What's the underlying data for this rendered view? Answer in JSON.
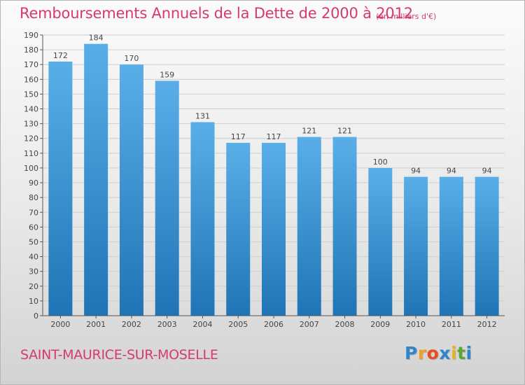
{
  "chart_data": {
    "type": "bar",
    "title": "Remboursements Annuels de la Dette de 2000 à 2012",
    "subtitle": "(en milliers d'€)",
    "categories": [
      "2000",
      "2001",
      "2002",
      "2003",
      "2004",
      "2005",
      "2006",
      "2007",
      "2008",
      "2009",
      "2010",
      "2011",
      "2012"
    ],
    "values": [
      172,
      184,
      170,
      159,
      131,
      117,
      117,
      121,
      121,
      100,
      94,
      94,
      94
    ],
    "ylim": [
      0,
      190
    ],
    "ytick_step": 10,
    "xlabel": "",
    "ylabel": "",
    "grid": true,
    "bar_color_top": "#5aaee8",
    "bar_color_bottom": "#1f74b5"
  },
  "footer": {
    "city": "SAINT-MAURICE-SUR-MOSELLE",
    "logo_letters": [
      "P",
      "r",
      "o",
      "x",
      "i",
      "t",
      "i"
    ],
    "logo_colors": [
      "#2e86c8",
      "#f0a020",
      "#e84e1c",
      "#2e86c8",
      "#e8b320",
      "#5aa832",
      "#2e86c8"
    ]
  },
  "colors": {
    "title": "#d63a6a",
    "grid": "#cfcfcf",
    "axis": "#555555"
  }
}
